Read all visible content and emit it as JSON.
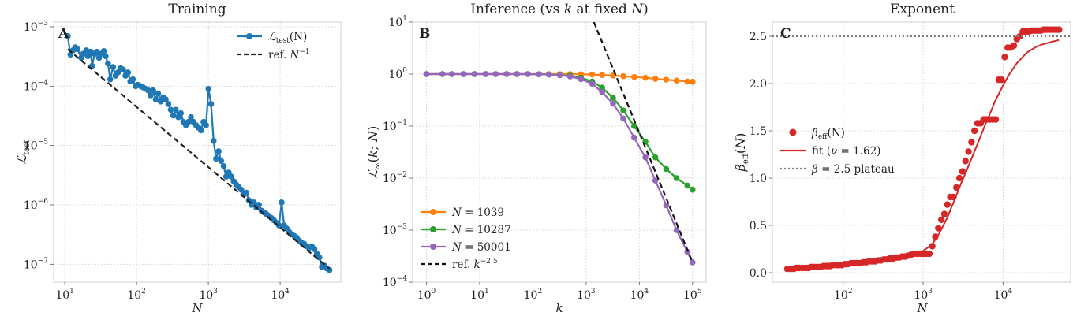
{
  "figure": {
    "panels": [
      {
        "title": "Training",
        "panel_label": "A"
      },
      {
        "title": "Inference (vs k at fixed N)",
        "panel_label": "B"
      },
      {
        "title": "Exponent",
        "panel_label": "C"
      }
    ]
  },
  "chart_data": [
    {
      "type": "line",
      "title": "Training",
      "panel_label": "A",
      "xlabel": "N",
      "ylabel": "L_test",
      "xscale": "log",
      "yscale": "log",
      "xlim": [
        7,
        70000
      ],
      "ylim": [
        5e-08,
        0.0012
      ],
      "xticks": [
        {
          "value": 10,
          "base": "10",
          "exp": "1"
        },
        {
          "value": 100,
          "base": "10",
          "exp": "2"
        },
        {
          "value": 1000,
          "base": "10",
          "exp": "3"
        },
        {
          "value": 10000,
          "base": "10",
          "exp": "4"
        }
      ],
      "yticks": [
        {
          "value": 1e-07,
          "base": "10",
          "exp": "−7"
        },
        {
          "value": 1e-06,
          "base": "10",
          "exp": "−6"
        },
        {
          "value": 1e-05,
          "base": "10",
          "exp": "−5"
        },
        {
          "value": 0.0001,
          "base": "10",
          "exp": "−4"
        },
        {
          "value": 0.001,
          "base": "10",
          "exp": "−3"
        }
      ],
      "grid": true,
      "legend_position": "top-right",
      "series": [
        {
          "name": "L_test(N)",
          "color": "#1f77b4",
          "style": "line-markers",
          "x": [
            11,
            12,
            13,
            14,
            15,
            17,
            18,
            20,
            21,
            23,
            24,
            26,
            28,
            30,
            32,
            35,
            37,
            40,
            43,
            47,
            51,
            55,
            60,
            65,
            70,
            76,
            82,
            89,
            97,
            105,
            114,
            124,
            134,
            145,
            157,
            170,
            185,
            200,
            217,
            235,
            255,
            277,
            300,
            325,
            352,
            382,
            414,
            449,
            487,
            528,
            572,
            620,
            672,
            728,
            790,
            856,
            928,
            1006,
            1091,
            1183,
            1282,
            1390,
            1507,
            1634,
            1771,
            1920,
            2082,
            2257,
            2447,
            2653,
            2876,
            3118,
            3380,
            3665,
            3973,
            4307,
            4669,
            5062,
            5488,
            5950,
            6451,
            6993,
            7582,
            8219,
            8911,
            9660,
            10473,
            11354,
            12309,
            13344,
            14467,
            15684,
            17003,
            18433,
            19984,
            21665,
            23487,
            25463,
            27605,
            29927,
            32444,
            35173,
            38132,
            41339,
            44817,
            48587
          ],
          "y": [
            0.0007,
            0.00034,
            0.0004,
            0.00045,
            0.00042,
            0.0003,
            0.00035,
            0.0004,
            0.00032,
            0.00038,
            0.00022,
            0.00035,
            0.00038,
            0.0003,
            0.00035,
            0.00039,
            0.00032,
            0.00024,
            0.00013,
            0.00021,
            0.00015,
            0.00017,
            0.0002,
            0.00019,
            0.00015,
            0.00017,
            0.00012,
            0.00013,
            0.0001,
            0.000105,
            0.0001,
            9.5e-05,
            9e-05,
            8.5e-05,
            7e-05,
            8.5e-05,
            6e-05,
            7.5e-05,
            5.5e-05,
            6.5e-05,
            6e-05,
            5e-05,
            4e-05,
            3.2e-05,
            4e-05,
            3e-05,
            3.5e-05,
            2.5e-05,
            2.2e-05,
            2.5e-05,
            3e-05,
            2.5e-05,
            2.2e-05,
            2e-05,
            1.8e-05,
            2.5e-05,
            2.2e-05,
            9e-05,
            5e-05,
            1.2e-05,
            6e-06,
            8e-06,
            5.5e-06,
            4.5e-06,
            3e-06,
            3.5e-06,
            3e-06,
            2.5e-06,
            2.2e-06,
            2e-06,
            1.8e-06,
            1.5e-06,
            1.6e-06,
            1.2e-06,
            1e-06,
            1.1e-06,
            9e-07,
            1e-06,
            8e-07,
            7.5e-07,
            7e-07,
            6.5e-07,
            6e-07,
            5.5e-07,
            5e-07,
            4.5e-07,
            1.1e-06,
            4.5e-07,
            4e-07,
            3.5e-07,
            3.2e-07,
            3e-07,
            2.8e-07,
            2.5e-07,
            2.3e-07,
            2.2e-07,
            2e-07,
            1.9e-07,
            2e-07,
            1.8e-07,
            1.5e-07,
            1.3e-07,
            9e-08,
            9.5e-08,
            8.5e-08,
            8e-08
          ]
        },
        {
          "name": "ref. N^-1",
          "color": "#222222",
          "style": "dashed",
          "x": [
            11,
            48587
          ],
          "y": [
            0.00042,
            8.4e-08
          ]
        }
      ],
      "legend": [
        {
          "pre": "",
          "sym": "ℒ",
          "sub": "test",
          "post": "(N)"
        },
        {
          "pre": "ref. ",
          "sym": "N",
          "sup": "−1",
          "post": ""
        }
      ]
    },
    {
      "type": "line",
      "title": "Inference (vs k at fixed N)",
      "panel_label": "B",
      "xlabel": "k",
      "ylabel": "L_∞(k; N)",
      "xscale": "log",
      "yscale": "log",
      "xlim": [
        0.55,
        180000
      ],
      "ylim": [
        0.0001,
        10
      ],
      "xticks": [
        {
          "value": 1,
          "base": "10",
          "exp": "0"
        },
        {
          "value": 10,
          "base": "10",
          "exp": "1"
        },
        {
          "value": 100,
          "base": "10",
          "exp": "2"
        },
        {
          "value": 1000,
          "base": "10",
          "exp": "3"
        },
        {
          "value": 10000,
          "base": "10",
          "exp": "4"
        },
        {
          "value": 100000,
          "base": "10",
          "exp": "5"
        }
      ],
      "yticks": [
        {
          "value": 0.0001,
          "base": "10",
          "exp": "−4"
        },
        {
          "value": 0.001,
          "base": "10",
          "exp": "−3"
        },
        {
          "value": 0.01,
          "base": "10",
          "exp": "−2"
        },
        {
          "value": 0.1,
          "base": "10",
          "exp": "−1"
        },
        {
          "value": 1,
          "base": "10",
          "exp": "0"
        },
        {
          "value": 10,
          "base": "10",
          "exp": "1"
        }
      ],
      "grid": true,
      "legend_position": "bottom-left",
      "series": [
        {
          "name": "N=1039",
          "color": "#ff7f0e",
          "style": "line-markers",
          "x": [
            1,
            2,
            3,
            5,
            8,
            13,
            20,
            32,
            50,
            80,
            130,
            200,
            320,
            500,
            800,
            1300,
            2000,
            3200,
            5000,
            8000,
            13000,
            20000,
            32000,
            50000,
            80000,
            100000
          ],
          "y": [
            1,
            1,
            1,
            1,
            1,
            1,
            1,
            1,
            1,
            1,
            1,
            1,
            1,
            1,
            0.99,
            0.98,
            0.96,
            0.94,
            0.91,
            0.88,
            0.85,
            0.81,
            0.78,
            0.75,
            0.72,
            0.71
          ]
        },
        {
          "name": "N=10287",
          "color": "#2ca02c",
          "style": "line-markers",
          "x": [
            1,
            2,
            3,
            5,
            8,
            13,
            20,
            32,
            50,
            80,
            130,
            200,
            320,
            500,
            800,
            1300,
            2000,
            3200,
            5000,
            8000,
            13000,
            20000,
            32000,
            50000,
            80000,
            100000
          ],
          "y": [
            1,
            1,
            1,
            1,
            1,
            1,
            1,
            1,
            1,
            1,
            0.99,
            0.98,
            0.96,
            0.93,
            0.85,
            0.72,
            0.55,
            0.35,
            0.2,
            0.1,
            0.05,
            0.025,
            0.015,
            0.01,
            0.0072,
            0.006
          ]
        },
        {
          "name": "N=50001",
          "color": "#9467bd",
          "style": "line-markers",
          "x": [
            1,
            2,
            3,
            5,
            8,
            13,
            20,
            32,
            50,
            80,
            130,
            200,
            320,
            500,
            800,
            1300,
            2000,
            3200,
            5000,
            8000,
            13000,
            20000,
            32000,
            50000,
            80000,
            100000
          ],
          "y": [
            1,
            1,
            1,
            1,
            1,
            1,
            1,
            1,
            1,
            1,
            0.99,
            0.98,
            0.95,
            0.9,
            0.8,
            0.65,
            0.45,
            0.27,
            0.14,
            0.06,
            0.025,
            0.009,
            0.003,
            0.001,
            0.00038,
            0.00024
          ]
        },
        {
          "name": "ref. k^-2.5",
          "color": "#111111",
          "style": "dashed",
          "x": [
            1400,
            100000
          ],
          "y": [
            10,
            0.00024
          ]
        }
      ],
      "legend": [
        {
          "pre": "",
          "sym": "N",
          "post": " = 1039"
        },
        {
          "pre": "",
          "sym": "N",
          "post": " = 10287"
        },
        {
          "pre": "",
          "sym": "N",
          "post": " = 50001"
        },
        {
          "pre": "ref. ",
          "sym": "k",
          "sup": "−2.5",
          "post": ""
        }
      ]
    },
    {
      "type": "scatter",
      "title": "Exponent",
      "panel_label": "C",
      "xlabel": "N",
      "ylabel": "β_eff(N)",
      "xscale": "log",
      "yscale": "linear",
      "xlim": [
        13,
        70000
      ],
      "ylim": [
        -0.1,
        2.65
      ],
      "xticks": [
        {
          "value": 100,
          "base": "10",
          "exp": "2"
        },
        {
          "value": 1000,
          "base": "10",
          "exp": "3"
        },
        {
          "value": 10000,
          "base": "10",
          "exp": "4"
        }
      ],
      "yticks": [
        {
          "value": 0,
          "label": "0.0"
        },
        {
          "value": 0.5,
          "label": "0.5"
        },
        {
          "value": 1,
          "label": "1.0"
        },
        {
          "value": 1.5,
          "label": "1.5"
        },
        {
          "value": 2,
          "label": "2.0"
        },
        {
          "value": 2.5,
          "label": "2.5"
        }
      ],
      "grid": true,
      "legend_position": "center-left",
      "series": [
        {
          "name": "β̂_eff(N)",
          "color": "#d62728",
          "style": "markers",
          "x": [
            20,
            22,
            24,
            26,
            28,
            31,
            34,
            37,
            40,
            44,
            48,
            52,
            57,
            62,
            68,
            74,
            81,
            88,
            96,
            105,
            114,
            125,
            136,
            148,
            162,
            177,
            193,
            210,
            229,
            250,
            273,
            297,
            324,
            354,
            386,
            421,
            459,
            500,
            546,
            595,
            649,
            708,
            773,
            843,
            919,
            1002,
            1093,
            1193,
            1301,
            1419,
            1548,
            1689,
            1842,
            2009,
            2192,
            2391,
            2608,
            2845,
            3103,
            3385,
            3693,
            4028,
            4394,
            4793,
            5229,
            5704,
            6222,
            6787,
            7404,
            8076,
            8810,
            9610,
            10483,
            11435,
            12474,
            13607,
            14843,
            16191,
            17662,
            19266,
            21016,
            22925,
            25007,
            27278,
            29756,
            32459,
            35407,
            38623,
            42131,
            45958,
            50132
          ],
          "y": [
            0.04,
            0.04,
            0.04,
            0.05,
            0.05,
            0.05,
            0.05,
            0.05,
            0.06,
            0.06,
            0.06,
            0.06,
            0.07,
            0.07,
            0.07,
            0.08,
            0.08,
            0.08,
            0.08,
            0.09,
            0.09,
            0.1,
            0.1,
            0.1,
            0.1,
            0.11,
            0.11,
            0.12,
            0.12,
            0.12,
            0.13,
            0.13,
            0.14,
            0.14,
            0.15,
            0.15,
            0.16,
            0.16,
            0.17,
            0.17,
            0.18,
            0.19,
            0.2,
            0.2,
            0.2,
            0.2,
            0.2,
            0.2,
            0.28,
            0.38,
            0.47,
            0.56,
            0.62,
            0.72,
            0.8,
            0.8,
            0.9,
            1.0,
            1.07,
            1.18,
            1.28,
            1.38,
            1.5,
            1.58,
            1.58,
            1.62,
            1.62,
            1.62,
            1.62,
            1.62,
            2.04,
            2.04,
            2.28,
            2.38,
            2.38,
            2.4,
            2.47,
            2.5,
            2.55,
            2.55,
            2.55,
            2.56,
            2.56,
            2.56,
            2.56,
            2.57,
            2.57,
            2.57,
            2.57,
            2.57,
            2.57
          ]
        },
        {
          "name": "fit (ν = 1.62)",
          "color": "#d62728",
          "style": "line",
          "x": [
            20,
            50,
            100,
            200,
            400,
            700,
            1000,
            1300,
            1600,
            2000,
            2500,
            3000,
            3500,
            4000,
            5000,
            6000,
            7000,
            8000,
            10000,
            12000,
            15000,
            20000,
            25000,
            30000,
            40000,
            50000
          ],
          "y": [
            0.03,
            0.05,
            0.08,
            0.11,
            0.15,
            0.2,
            0.23,
            0.3,
            0.42,
            0.58,
            0.78,
            0.95,
            1.08,
            1.2,
            1.4,
            1.57,
            1.7,
            1.82,
            1.98,
            2.1,
            2.22,
            2.33,
            2.38,
            2.41,
            2.44,
            2.46
          ]
        },
        {
          "name": "β = 2.5 plateau",
          "color": "#7f7f7f",
          "style": "dotted",
          "y_const": 2.5
        }
      ],
      "legend": [
        {
          "pre": "",
          "sym": "β̂",
          "sub": "eff",
          "post": "(N)"
        },
        {
          "pre": "fit (",
          "sym": "ν",
          "post": " = 1.62)"
        },
        {
          "pre": "",
          "sym": "β",
          "post": " = 2.5 plateau"
        }
      ]
    }
  ]
}
